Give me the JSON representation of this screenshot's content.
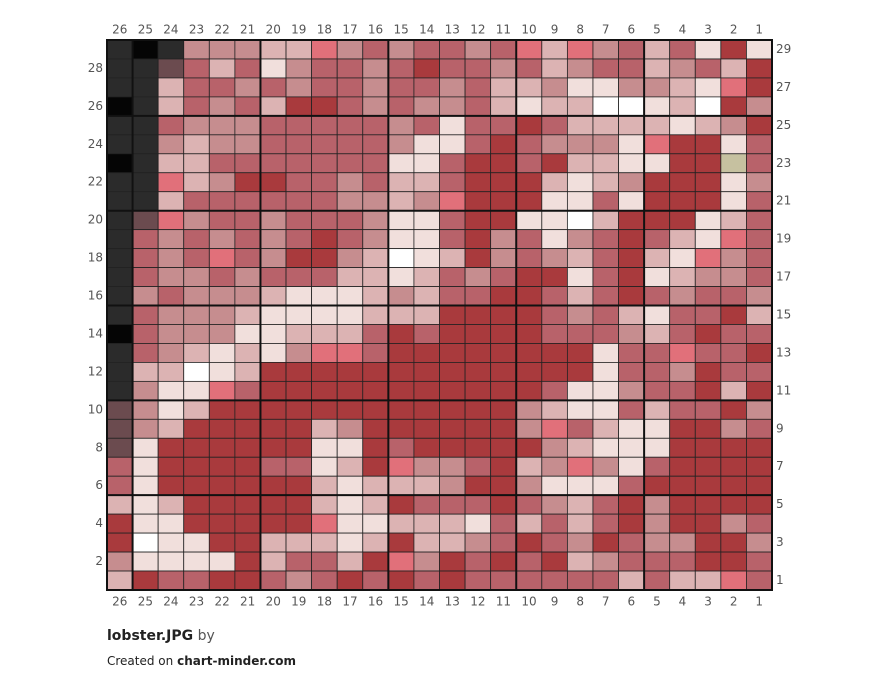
{
  "title": "lobster.JPG",
  "by": "by",
  "created_on": "Created on",
  "site": "chart-minder.com",
  "columns": [
    26,
    25,
    24,
    23,
    22,
    21,
    20,
    19,
    18,
    17,
    16,
    15,
    14,
    13,
    12,
    11,
    10,
    9,
    8,
    7,
    6,
    5,
    4,
    3,
    2,
    1
  ],
  "rows": [
    1,
    2,
    3,
    4,
    5,
    6,
    7,
    8,
    9,
    10,
    11,
    12,
    13,
    14,
    15,
    16,
    17,
    18,
    19,
    20,
    21,
    22,
    23,
    24,
    25,
    26,
    27,
    28,
    29
  ],
  "palette": {
    "K": "#2b2b2b",
    "B": "#050505",
    "Q": "#6b4b4f",
    "D": "#a93a3d",
    "M": "#b8626a",
    "P": "#c68d8f",
    "L": "#dcb3b3",
    "W": "#f1dfdc",
    "X": "#ffffff",
    "R": "#e1707a",
    "G": "#c6c1a0"
  },
  "grid": [
    "KBKPPPLLRPMPMMPMRLRPMLMWDW",
    "KKQMLMWPMMPMDMMPMLPMMLPMLD",
    "KKLMMPMPMMPMMPMLLPWWPPLWRD",
    "BKLMPMLDDMPMPPMLWLLXXWLXDP",
    "KKMPPPMMMMMPMWMMDMLLLLWLPD",
    "KKPLPPMMMMMPWWMDMPPPWRDDWM",
    "BKLLMMMMMMMWWMDDMDLLWWDDGM",
    "KKRLPDDMMPMLLMDDDLWLPDDDWP",
    "KKLMMMMMMPPLPRDDDWWMWDDDWM",
    "KQRPMMPMMMPWWMDDWWXLDDDWLM",
    "KMPMPMPMDMPWWMDPMWPMDMLWRM",
    "KMPMRMPDDPLXWLDPMPLMDLWRPM",
    "KMPPMPMMMLLWLMPMDDWMDWLPPM",
    "KPMPPPLWWWLPLMMDDMLMDMPMMP",
    "KMPPPLWWWWLLLDDDDMPMLWMMDL",
    "BMPPPWWLLLMDMDDDDMMMPLMDMM",
    "KMPLWLWPRRMDDDDDDDDWMMRMMD",
    "KLLXWLDDDDDDDDDDDDDWMMPDMM",
    "KPWWRMDDDDDDDDDDDMWWPMMDLD",
    "QPWLDDDDDDDDDDDDPLWWMLMMDP",
    "QPLDDDDDLPDDDDDDPRMLWWDDPM",
    "QWDDDDDDWWDMDDDDDPLWWWDDDD",
    "MWDDDDMMWLDRPPMDLPRPWMDDDD",
    "MWDDDDDDLWLLLPDDPWWWMDDDDD",
    "LWLDDDDDLWLDMMMDMPLMDPDDDD",
    "DWWDDDDDRWWLLLWMLMLMDPDDPM",
    "DXWWDDLLLWLDLLPMDMPDMPPDDP",
    "PWWWWDLMMLDRPDMDMDLPMMMDDM",
    "LDMMDDMPMDMDMDMMMMMMLMLLRM"
  ]
}
